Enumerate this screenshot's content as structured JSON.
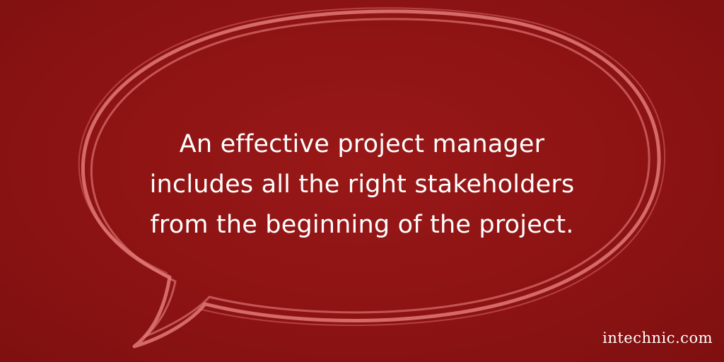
{
  "quote": {
    "lines": [
      "An effective project manager",
      "includes all the right stakeholders",
      "from the beginning of the project."
    ]
  },
  "brand": {
    "site": "intechnic.com"
  },
  "colors": {
    "background": "#8e1414",
    "bubble_stroke": "#e27a78",
    "text": "#ffffff"
  }
}
